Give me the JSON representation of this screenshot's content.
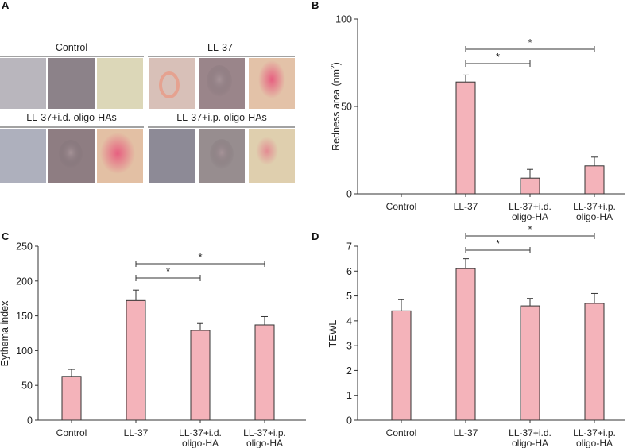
{
  "panel_labels": [
    "A",
    "B",
    "C",
    "D"
  ],
  "photo_panel": {
    "group_titles": [
      "Control",
      "LL-37",
      "LL-37+i.d. oligo-HAs",
      "LL-37+i.p. oligo-HAs"
    ],
    "tissue_colors": {
      "control": [
        "#b9b6bd",
        "#8c8289",
        "#dcd7b8"
      ],
      "ll37": [
        "#d8c0b8",
        "#9a858a",
        "#e3c2a8"
      ],
      "id": [
        "#aeb0bd",
        "#8e7d82",
        "#e3c0a4"
      ],
      "ip": [
        "#8d8a96",
        "#978d8f",
        "#dfcfae"
      ],
      "lesion": "#e75a7e"
    }
  },
  "bar_color": "#f4b3ba",
  "chart_data": [
    {
      "panel": "B",
      "type": "bar",
      "categories": [
        "Control",
        "LL-37",
        "LL-37+i.d.\noligo-HA",
        "LL-37+i.p.\noligo-HA"
      ],
      "values": [
        0,
        64,
        9,
        16
      ],
      "errors": [
        0,
        4,
        5,
        5
      ],
      "ylabel_prefix": "Redness area (nm",
      "ylabel_sup": "2",
      "ylabel_suffix": ")",
      "ylim": [
        0,
        100
      ],
      "yticks": [
        0,
        50,
        100
      ],
      "significance": [
        {
          "from": 1,
          "to": 2,
          "label": "*"
        },
        {
          "from": 1,
          "to": 3,
          "label": "*"
        }
      ]
    },
    {
      "panel": "C",
      "type": "bar",
      "categories": [
        "Control",
        "LL-37",
        "LL-37+i.d.\noligo-HA",
        "LL-37+i.p.\noligo-HA"
      ],
      "values": [
        63,
        172,
        129,
        137
      ],
      "errors": [
        10,
        15,
        10,
        12
      ],
      "ylabel": "Eythema index",
      "ylim": [
        0,
        250
      ],
      "yticks": [
        0,
        50,
        100,
        150,
        200,
        250
      ],
      "significance": [
        {
          "from": 1,
          "to": 2,
          "label": "*"
        },
        {
          "from": 1,
          "to": 3,
          "label": "*"
        }
      ]
    },
    {
      "panel": "D",
      "type": "bar",
      "categories": [
        "Control",
        "LL-37",
        "LL-37+i.d.\noligo-HA",
        "LL-37+i.p.\noligo-HA"
      ],
      "values": [
        4.4,
        6.1,
        4.6,
        4.7
      ],
      "errors": [
        0.45,
        0.4,
        0.3,
        0.4
      ],
      "ylabel": "TEWL",
      "ylim": [
        0,
        7
      ],
      "yticks": [
        0,
        1,
        2,
        3,
        4,
        5,
        6,
        7
      ],
      "significance": [
        {
          "from": 1,
          "to": 2,
          "label": "*"
        },
        {
          "from": 1,
          "to": 3,
          "label": "*"
        }
      ]
    }
  ]
}
